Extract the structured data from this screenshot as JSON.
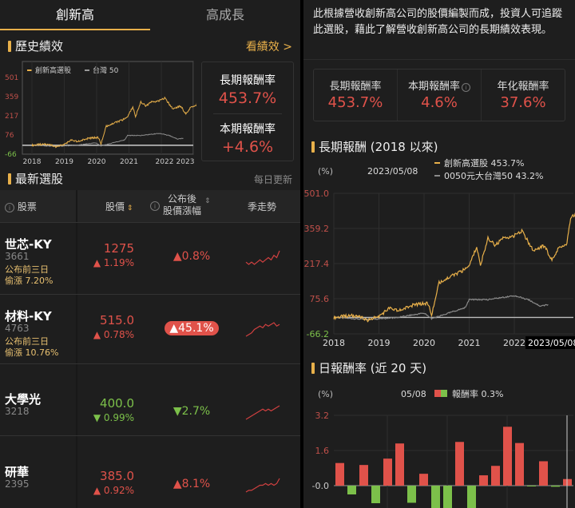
{
  "tabs": [
    {
      "label": "創新高",
      "active": true
    },
    {
      "label": "高成長",
      "active": false
    }
  ],
  "history": {
    "title": "歷史績效",
    "link": "看績效 >",
    "legend": [
      "創新高選股",
      "台灣 50"
    ],
    "long_label": "長期報酬率",
    "long_value": "453.7%",
    "period_label": "本期報酬率",
    "period_value": "+4.6%"
  },
  "latest": {
    "title": "最新選股",
    "update": "每日更新",
    "headers": {
      "stock": "股票",
      "price": "股價",
      "change_line1": "公布後",
      "change_line2": "股價漲幅",
      "trend": "季走勢"
    },
    "rows": [
      {
        "name": "世芯-KY",
        "code": "3661",
        "note1": "公布前三日",
        "note2": "偷漲 7.20%",
        "price": "1275",
        "pct": "▲ 1.19%",
        "change": "▲0.8%",
        "dir": "up",
        "pill": false,
        "trend": [
          3,
          2,
          3,
          2,
          3,
          4,
          3,
          4,
          5,
          4,
          6,
          5,
          8
        ]
      },
      {
        "name": "材料-KY",
        "code": "4763",
        "note1": "公布前三日",
        "note2": "偷漲 10.76%",
        "price": "515.0",
        "pct": "▲ 0.78%",
        "change": "▲45.1%",
        "dir": "up",
        "pill": true,
        "trend": [
          1,
          2,
          3,
          5,
          6,
          7,
          6,
          8,
          7,
          8,
          9,
          7,
          8
        ]
      },
      {
        "name": "大學光",
        "code": "3218",
        "note1": "",
        "note2": "",
        "price": "400.0",
        "pct": "▼ 0.99%",
        "change": "▼2.7%",
        "dir": "down",
        "pill": false,
        "trend": [
          1,
          2,
          3,
          4,
          5,
          6,
          7,
          6,
          7,
          6,
          7,
          8,
          9
        ]
      },
      {
        "name": "研華",
        "code": "2395",
        "note1": "",
        "note2": "",
        "price": "385.0",
        "pct": "▲ 0.92%",
        "change": "▲8.1%",
        "dir": "up",
        "pill": false,
        "trend": [
          1,
          2,
          2,
          3,
          4,
          5,
          5,
          6,
          5,
          6,
          5,
          6,
          9
        ]
      }
    ]
  },
  "description": "此根據營收創新高公司的股價編製而成，投資人可追蹤此選股，藉此了解營收創新高公司的長期績效表現。",
  "stats": [
    {
      "label": "長期報酬率",
      "value": "453.7%"
    },
    {
      "label": "本期報酬率",
      "value": "4.6%",
      "info": true
    },
    {
      "label": "年化報酬率",
      "value": "37.6%"
    }
  ],
  "colors": {
    "accent": "#e8b04a",
    "up": "#e0524a",
    "down": "#7cc04a",
    "benchmark": "#8a8a8a"
  },
  "chart_data": [
    {
      "type": "line",
      "title": "長期報酬 (2018 以來)",
      "ylabel": "(%)",
      "date": "2023/05/08",
      "yticks": [
        "501.0",
        "359.2",
        "217.4",
        "75.6",
        "-66.2"
      ],
      "ylim": [
        -66.2,
        501.0
      ],
      "xticks": [
        "2018",
        "2019",
        "2020",
        "2021",
        "2022"
      ],
      "cursor_label": "2023/05/08",
      "series": [
        {
          "name": "創新高選股 453.7%",
          "color": "#e8b04a",
          "points": [
            [
              "2018-01",
              0
            ],
            [
              "2018-04",
              5
            ],
            [
              "2018-07",
              8
            ],
            [
              "2018-10",
              -12
            ],
            [
              "2019-01",
              5
            ],
            [
              "2019-04",
              40
            ],
            [
              "2019-06",
              25
            ],
            [
              "2019-10",
              50
            ],
            [
              "2020-02",
              58
            ],
            [
              "2020-03",
              10
            ],
            [
              "2020-05",
              140
            ],
            [
              "2020-08",
              165
            ],
            [
              "2020-11",
              185
            ],
            [
              "2021-01",
              210
            ],
            [
              "2021-03",
              285
            ],
            [
              "2021-04",
              210
            ],
            [
              "2021-06",
              320
            ],
            [
              "2021-08",
              290
            ],
            [
              "2021-10",
              320
            ],
            [
              "2022-01",
              330
            ],
            [
              "2022-03",
              350
            ],
            [
              "2022-06",
              270
            ],
            [
              "2022-09",
              290
            ],
            [
              "2022-11",
              230
            ],
            [
              "2023-01",
              285
            ],
            [
              "2023-03",
              300
            ],
            [
              "2023-04",
              400
            ],
            [
              "2023-05",
              453.7
            ]
          ]
        },
        {
          "name": "0050元大台灣50 43.2%",
          "color": "#8a8a8a",
          "points": [
            [
              "2018-01",
              0
            ],
            [
              "2018-10",
              -8
            ],
            [
              "2019-06",
              0
            ],
            [
              "2020-01",
              18
            ],
            [
              "2020-03",
              -5
            ],
            [
              "2020-06",
              10
            ],
            [
              "2020-12",
              40
            ],
            [
              "2021-01",
              72
            ],
            [
              "2021-06",
              72
            ],
            [
              "2022-01",
              88
            ],
            [
              "2022-05",
              70
            ],
            [
              "2022-08",
              45
            ],
            [
              "2022-10",
              52
            ]
          ]
        }
      ]
    },
    {
      "type": "bar",
      "title": "日報酬率 (近 20 天)",
      "ylabel": "(%)",
      "date": "05/08",
      "legend": "報酬率 0.3%",
      "yticks": [
        "3.2",
        "1.6",
        "-0.0"
      ],
      "ylim": [
        -1.5,
        3.2
      ],
      "values": [
        1.03,
        -0.4,
        0.94,
        -0.8,
        1.23,
        1.92,
        -0.78,
        0.54,
        -1.2,
        -1.2,
        1.99,
        -1.2,
        0.47,
        0.9,
        2.68,
        1.94,
        -0.03,
        1.11,
        -0.05,
        0.3
      ]
    },
    {
      "type": "line",
      "title": "",
      "legend": [
        "創新高選股",
        "台灣 50"
      ],
      "yticks": [
        "501",
        "359",
        "217",
        "76",
        "-66"
      ],
      "ylim": [
        -66,
        501
      ],
      "xticks": [
        "2018",
        "2019",
        "2020",
        "2021",
        "2022",
        "2023"
      ]
    }
  ]
}
